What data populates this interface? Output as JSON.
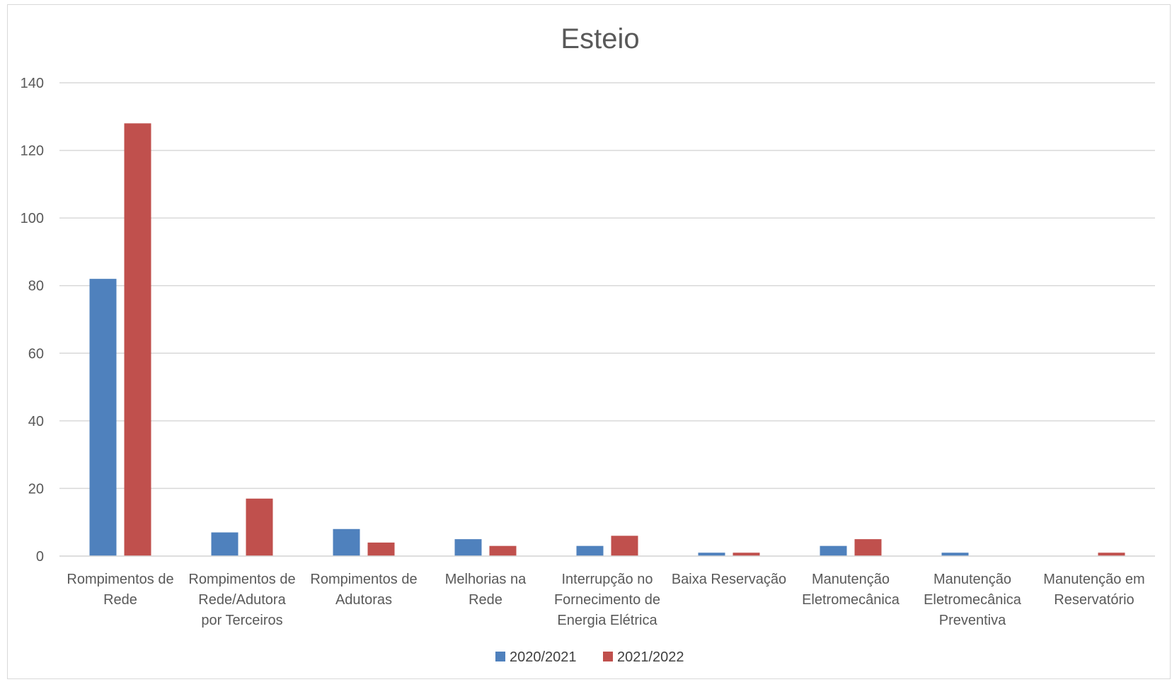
{
  "chart_data": {
    "type": "bar",
    "title": "Esteio",
    "xlabel": "",
    "ylabel": "",
    "ylim": [
      0,
      140
    ],
    "yticks": [
      0,
      20,
      40,
      60,
      80,
      100,
      120,
      140
    ],
    "grid": true,
    "legend_position": "bottom",
    "categories": [
      [
        "Rompimentos de",
        "Rede"
      ],
      [
        "Rompimentos de",
        "Rede/Adutora",
        "por Terceiros"
      ],
      [
        "Rompimentos de",
        "Adutoras"
      ],
      [
        "Melhorias na",
        "Rede"
      ],
      [
        "Interrupção no",
        "Fornecimento de",
        "Energia Elétrica"
      ],
      [
        "Baixa Reservação"
      ],
      [
        "Manutenção",
        "Eletromecânica"
      ],
      [
        "Manutenção",
        "Eletromecânica",
        "Preventiva"
      ],
      [
        "Manutenção em",
        "Reservatório"
      ]
    ],
    "series": [
      {
        "name": "2020/2021",
        "color": "#4f81bd",
        "values": [
          82,
          7,
          8,
          5,
          3,
          1,
          3,
          1,
          0
        ]
      },
      {
        "name": "2021/2022",
        "color": "#c0504d",
        "values": [
          128,
          17,
          4,
          3,
          6,
          1,
          5,
          0,
          1
        ]
      }
    ]
  }
}
